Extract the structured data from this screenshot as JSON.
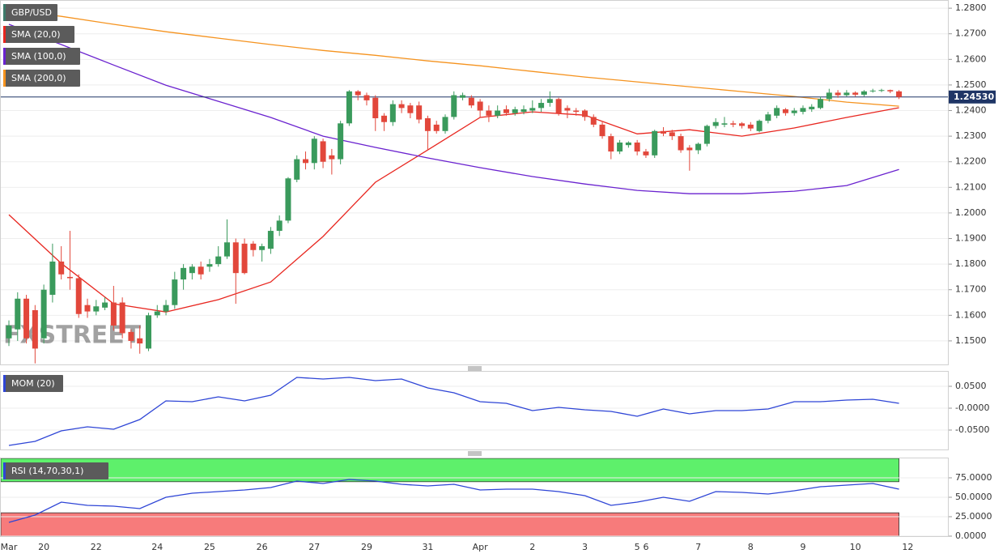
{
  "chart_data": [
    {
      "type": "candlestick",
      "title": "GBP/USD",
      "watermark": "FXSTREET",
      "categories": [
        "Mar",
        null,
        null,
        null,
        "20",
        null,
        null,
        null,
        null,
        null,
        "22",
        null,
        null,
        null,
        null,
        null,
        null,
        "24",
        null,
        null,
        null,
        null,
        null,
        "25",
        null,
        null,
        null,
        null,
        null,
        "26",
        null,
        null,
        null,
        null,
        null,
        "27",
        null,
        null,
        null,
        null,
        null,
        "29",
        null,
        null,
        null,
        null,
        null,
        null,
        "31",
        null,
        null,
        null,
        null,
        null,
        "Apr",
        null,
        null,
        null,
        null,
        null,
        "2",
        null,
        null,
        null,
        null,
        null,
        "3",
        null,
        null,
        null,
        null,
        null,
        "5",
        "6",
        null,
        null,
        null,
        null,
        null,
        "7",
        null,
        null,
        null,
        null,
        null,
        "8",
        null,
        null,
        null,
        null,
        null,
        "9",
        null,
        null,
        null,
        null,
        null,
        "10",
        null,
        null,
        null,
        null,
        null,
        "12"
      ],
      "open": [
        1.151,
        1.1545,
        1.1665,
        1.162,
        1.151,
        1.168,
        1.181,
        1.175,
        1.1745,
        1.164,
        1.1615,
        1.163,
        1.165,
        1.165,
        1.1535,
        1.151,
        1.147,
        1.16,
        1.1615,
        1.164,
        1.174,
        1.1765,
        1.179,
        1.179,
        1.18,
        1.183,
        1.1885,
        1.188,
        1.188,
        1.1855,
        1.186,
        1.193,
        1.197,
        1.213,
        1.221,
        1.2195,
        1.228,
        1.2225,
        1.221,
        1.235,
        1.2475,
        1.246,
        1.245,
        1.238,
        1.2355,
        1.2425,
        1.242,
        1.242,
        1.237,
        1.2345,
        1.232,
        1.2375,
        1.245,
        1.245,
        1.2435,
        1.24,
        1.238,
        1.2405,
        1.239,
        1.2395,
        1.24,
        1.241,
        1.243,
        1.2445,
        1.241,
        1.24,
        1.24,
        1.2375,
        1.2345,
        1.23,
        1.224,
        1.2265,
        1.2275,
        1.224,
        1.2225,
        1.232,
        1.2315,
        1.23,
        1.2255,
        1.2245,
        1.227,
        1.234,
        1.2345,
        1.235,
        1.235,
        1.2345,
        1.232,
        1.236,
        1.238,
        1.2405,
        1.239,
        1.2395,
        1.2405,
        1.241,
        1.2445,
        1.247,
        1.246,
        1.247,
        1.2462,
        1.2475,
        1.2478,
        1.248,
        1.2475,
        null
      ],
      "high": [
        1.158,
        1.169,
        1.168,
        1.164,
        1.172,
        1.188,
        1.187,
        1.193,
        1.176,
        1.1665,
        1.166,
        1.167,
        1.1715,
        1.167,
        1.1545,
        1.156,
        1.161,
        1.164,
        1.166,
        1.177,
        1.18,
        1.18,
        1.181,
        1.182,
        1.187,
        1.1975,
        1.19,
        1.19,
        1.189,
        1.188,
        1.1945,
        1.199,
        1.214,
        1.2225,
        1.224,
        1.23,
        1.229,
        1.225,
        1.236,
        1.248,
        1.248,
        1.247,
        1.246,
        1.239,
        1.244,
        1.244,
        1.243,
        1.2435,
        1.238,
        1.236,
        1.2385,
        1.2475,
        1.247,
        1.246,
        1.2445,
        1.242,
        1.242,
        1.242,
        1.2415,
        1.242,
        1.244,
        1.2445,
        1.2475,
        1.245,
        1.242,
        1.241,
        1.2405,
        1.2385,
        1.2355,
        1.231,
        1.2285,
        1.228,
        1.2285,
        1.225,
        1.2325,
        1.2335,
        1.2325,
        1.231,
        1.2265,
        1.2275,
        1.2345,
        1.237,
        1.2375,
        1.236,
        1.2355,
        1.2355,
        1.2365,
        1.2395,
        1.242,
        1.241,
        1.241,
        1.242,
        1.2425,
        1.2455,
        1.2485,
        1.248,
        1.248,
        1.2475,
        1.248,
        1.2485,
        1.2485,
        1.2482,
        1.248,
        null
      ],
      "low": [
        1.148,
        1.15,
        1.149,
        1.1412,
        1.149,
        1.165,
        1.174,
        1.17,
        1.159,
        1.159,
        1.16,
        1.162,
        1.154,
        1.151,
        1.147,
        1.145,
        1.146,
        1.159,
        1.16,
        1.1625,
        1.17,
        1.174,
        1.174,
        1.177,
        1.179,
        1.182,
        1.1645,
        1.176,
        1.183,
        1.181,
        1.184,
        1.191,
        1.196,
        1.212,
        1.217,
        1.217,
        1.2175,
        1.215,
        1.219,
        1.234,
        1.244,
        1.242,
        1.232,
        1.232,
        1.234,
        1.239,
        1.237,
        1.235,
        1.2245,
        1.231,
        1.231,
        1.2365,
        1.244,
        1.241,
        1.2375,
        1.2355,
        1.237,
        1.238,
        1.238,
        1.2385,
        1.239,
        1.2395,
        1.2415,
        1.238,
        1.237,
        1.238,
        1.236,
        1.2335,
        1.229,
        1.221,
        1.223,
        1.2255,
        1.2225,
        1.2215,
        1.2215,
        1.23,
        1.2285,
        1.2235,
        1.2165,
        1.223,
        1.226,
        1.233,
        1.2335,
        1.2335,
        1.233,
        1.232,
        1.2315,
        1.235,
        1.237,
        1.238,
        1.238,
        1.2385,
        1.2395,
        1.2405,
        1.2435,
        1.245,
        1.2455,
        1.2455,
        1.2455,
        1.247,
        1.2472,
        1.2468,
        1.2445,
        null
      ],
      "close": [
        1.156,
        1.1665,
        1.151,
        1.147,
        1.17,
        1.181,
        1.176,
        1.1745,
        1.1605,
        1.1615,
        1.1635,
        1.165,
        1.156,
        1.153,
        1.15,
        1.149,
        1.16,
        1.1615,
        1.164,
        1.174,
        1.1785,
        1.179,
        1.176,
        1.18,
        1.183,
        1.1885,
        1.1765,
        1.1765,
        1.1855,
        1.187,
        1.193,
        1.197,
        1.2135,
        1.221,
        1.2195,
        1.229,
        1.22,
        1.221,
        1.235,
        1.2475,
        1.246,
        1.244,
        1.237,
        1.2355,
        1.2425,
        1.241,
        1.239,
        1.2365,
        1.232,
        1.232,
        1.2375,
        1.246,
        1.246,
        1.242,
        1.24,
        1.238,
        1.24,
        1.239,
        1.2405,
        1.2405,
        1.241,
        1.243,
        1.2445,
        1.239,
        1.24,
        1.2395,
        1.2375,
        1.2345,
        1.23,
        1.224,
        1.2275,
        1.2275,
        1.224,
        1.2225,
        1.232,
        1.231,
        1.23,
        1.2245,
        1.2245,
        1.227,
        1.234,
        1.2355,
        1.235,
        1.2345,
        1.234,
        1.233,
        1.236,
        1.2385,
        1.241,
        1.239,
        1.24,
        1.241,
        1.2415,
        1.2445,
        1.247,
        1.246,
        1.247,
        1.2462,
        1.2475,
        1.2478,
        1.248,
        1.2475,
        1.2453,
        null
      ],
      "up_color": "#3a9a5c",
      "down_color": "#e2473b",
      "last_price": {
        "value": 1.2453,
        "label": "1.24530"
      },
      "last_price_color": "#1f3566",
      "series": [
        {
          "name": "SMA (20,0)",
          "color": "#e8261f",
          "x": [
            0,
            6,
            12,
            18,
            24,
            30,
            36,
            42,
            48,
            54,
            60,
            66,
            72,
            78,
            84,
            90,
            96,
            102
          ],
          "values": [
            1.1993,
            1.1803,
            1.1645,
            1.1613,
            1.1661,
            1.173,
            1.1908,
            1.212,
            1.2246,
            1.2373,
            1.2395,
            1.2382,
            1.2309,
            1.2325,
            1.23,
            1.2332,
            1.2373,
            1.2411
          ]
        },
        {
          "name": "SMA (100,0)",
          "color": "#6a22cf",
          "x": [
            0,
            6,
            12,
            18,
            24,
            30,
            36,
            42,
            48,
            54,
            60,
            66,
            72,
            78,
            84,
            90,
            96,
            102
          ],
          "values": [
            1.2737,
            1.2658,
            1.2578,
            1.2499,
            1.2436,
            1.2373,
            1.23,
            1.2256,
            1.2215,
            1.2177,
            1.2142,
            1.2113,
            1.2088,
            1.2075,
            1.2075,
            1.2085,
            1.2107,
            1.217
          ]
        },
        {
          "name": "SMA (200,0)",
          "color": "#f5931f",
          "x": [
            0,
            6,
            12,
            18,
            24,
            30,
            36,
            42,
            48,
            54,
            60,
            66,
            72,
            78,
            84,
            90,
            96,
            102
          ],
          "values": [
            1.2794,
            1.2768,
            1.2737,
            1.2708,
            1.2683,
            1.2658,
            1.2635,
            1.2616,
            1.2594,
            1.2575,
            1.2553,
            1.2531,
            1.2512,
            1.2493,
            1.2474,
            1.2455,
            1.2433,
            1.2417
          ]
        }
      ],
      "ylim": [
        1.1408,
        1.2832
      ],
      "yticks": [
        {
          "value": 1.28,
          "label": "1.2800"
        },
        {
          "value": 1.27,
          "label": "1.2700"
        },
        {
          "value": 1.26,
          "label": "1.2600"
        },
        {
          "value": 1.25,
          "label": "1.2500"
        },
        {
          "value": 1.24,
          "label": "1.2400"
        },
        {
          "value": 1.23,
          "label": "1.2300"
        },
        {
          "value": 1.22,
          "label": "1.2200"
        },
        {
          "value": 1.21,
          "label": "1.2100"
        },
        {
          "value": 1.2,
          "label": "1.2000"
        },
        {
          "value": 1.19,
          "label": "1.1900"
        },
        {
          "value": 1.18,
          "label": "1.1800"
        },
        {
          "value": 1.17,
          "label": "1.1700"
        },
        {
          "value": 1.16,
          "label": "1.1600"
        },
        {
          "value": 1.15,
          "label": "1.1500"
        }
      ],
      "grid": true
    },
    {
      "type": "line",
      "series": [
        {
          "name": "MOM (20)",
          "color": "#2e45d6",
          "x": [
            0,
            3,
            6,
            9,
            12,
            15,
            18,
            21,
            24,
            27,
            30,
            33,
            36,
            39,
            42,
            45,
            48,
            51,
            54,
            57,
            60,
            63,
            66,
            69,
            72,
            75,
            78,
            81,
            84,
            87,
            90,
            93,
            96,
            99,
            102
          ],
          "values": [
            -0.0852,
            -0.0759,
            -0.0519,
            -0.0426,
            -0.0481,
            -0.0259,
            0.0167,
            0.0148,
            0.0259,
            0.0167,
            0.0296,
            0.0704,
            0.0667,
            0.0704,
            0.063,
            0.0667,
            0.0463,
            0.0352,
            0.0148,
            0.0111,
            -0.0056,
            0.0019,
            -0.0037,
            -0.0074,
            -0.0185,
            -0.0019,
            -0.013,
            -0.0056,
            -0.0056,
            -0.0019,
            0.0148,
            0.0148,
            0.0185,
            0.0204,
            0.0111
          ]
        }
      ],
      "ylim": [
        -0.0944,
        0.0852
      ],
      "yticks": [
        {
          "value": 0.05,
          "label": "0.0500"
        },
        {
          "value": 0,
          "label": "-0.0000"
        },
        {
          "value": -0.05,
          "label": "-0.0500"
        }
      ],
      "grid": true
    },
    {
      "type": "line",
      "series": [
        {
          "name": "RSI (14,70,30,1)",
          "color": "#2e45d6",
          "x": [
            0,
            3,
            6,
            9,
            12,
            15,
            18,
            21,
            24,
            27,
            30,
            33,
            36,
            39,
            42,
            45,
            48,
            51,
            54,
            57,
            60,
            63,
            66,
            69,
            72,
            75,
            78,
            81,
            84,
            87,
            90,
            93,
            96,
            99,
            102
          ],
          "values": [
            17.7,
            27.1,
            43.8,
            39.6,
            38.5,
            35.4,
            50.0,
            55.2,
            57.3,
            59.4,
            62.5,
            70.8,
            67.7,
            72.9,
            70.8,
            66.7,
            64.6,
            66.7,
            59.4,
            60.4,
            60.4,
            57.3,
            52.1,
            39.6,
            43.8,
            50.0,
            44.8,
            57.3,
            56.3,
            54.2,
            58.3,
            63.5,
            65.6,
            67.7,
            60.4
          ]
        }
      ],
      "bands": [
        {
          "from": 70,
          "to": 100,
          "color": "#5ef06b"
        },
        {
          "from": 0,
          "to": 30,
          "color": "#f77b7b"
        }
      ],
      "ylim": [
        0,
        100
      ],
      "yticks": [
        {
          "value": 75,
          "label": "75.0000"
        },
        {
          "value": 50,
          "label": "50.0000"
        },
        {
          "value": 25,
          "label": "25.0000"
        },
        {
          "value": 0,
          "label": "0.0000"
        }
      ],
      "grid": true
    }
  ]
}
